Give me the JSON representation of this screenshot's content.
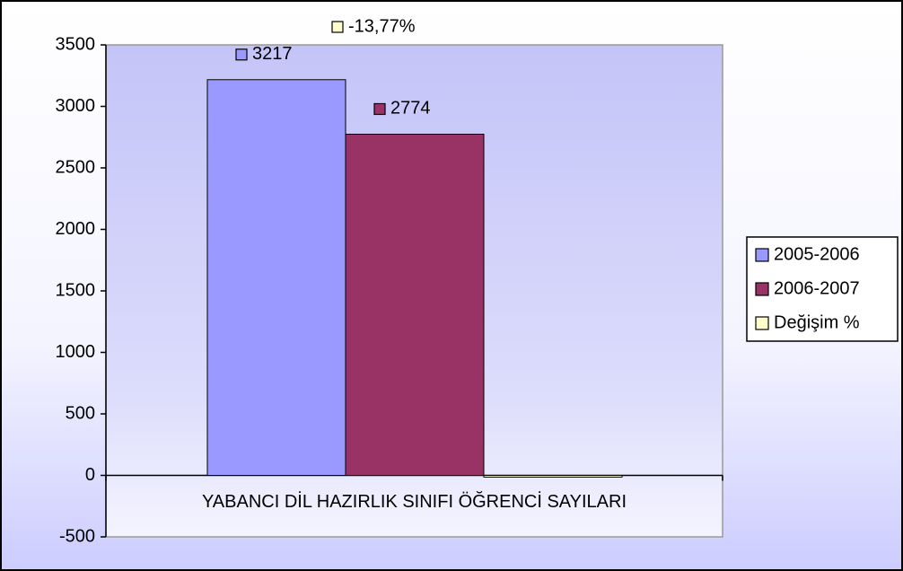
{
  "chart_data": {
    "type": "bar",
    "categories": [
      "YABANCI DİL HAZIRLIK SINIFI ÖĞRENCİ SAYILARI"
    ],
    "series": [
      {
        "name": "2005-2006",
        "color": "#9999ff",
        "values": [
          3217
        ]
      },
      {
        "name": "2006-2007",
        "color": "#993366",
        "values": [
          2774
        ]
      },
      {
        "name": "Değişim %",
        "color": "#ffffcc",
        "values": [
          -13.77
        ],
        "value_labels": [
          "-13,77%"
        ]
      }
    ],
    "ylim": [
      -500,
      3500
    ],
    "yticks": [
      -500,
      0,
      500,
      1000,
      1500,
      2000,
      2500,
      3000,
      3500
    ],
    "grid": false,
    "legend": "right"
  }
}
